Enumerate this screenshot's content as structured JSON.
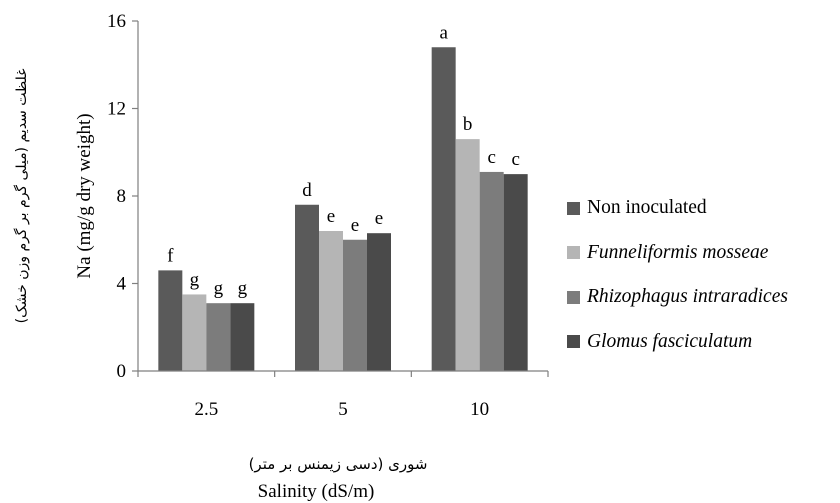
{
  "chart_data": {
    "type": "bar",
    "categories": [
      "2.5",
      "5",
      "10"
    ],
    "series": [
      {
        "name": "Non inoculated",
        "color": "#5a5a5a",
        "italic": false,
        "values": [
          4.6,
          7.6,
          14.8
        ],
        "labels": [
          "f",
          "d",
          "a"
        ]
      },
      {
        "name": "Funneliformis mosseae",
        "color": "#b5b5b5",
        "italic": true,
        "values": [
          3.5,
          6.4,
          10.6
        ],
        "labels": [
          "g",
          "e",
          "b"
        ]
      },
      {
        "name": "Rhizophagus intraradices",
        "color": "#7c7c7c",
        "italic": true,
        "values": [
          3.1,
          6.0,
          9.1
        ],
        "labels": [
          "g",
          "e",
          "c"
        ]
      },
      {
        "name": "Glomus fasciculatum",
        "color": "#4a4a4a",
        "italic": true,
        "values": [
          3.1,
          6.3,
          9.0
        ],
        "labels": [
          "g",
          "e",
          "c"
        ]
      }
    ],
    "ylim": [
      0,
      16
    ],
    "yticks": [
      0,
      4,
      8,
      12,
      16
    ],
    "ylabel": "Na (mg/g dry weight)",
    "ylabel_fa": "غلظت سدیم (میلی گرم بر گرم وزن خشک)",
    "xlabel": "Salinity (dS/m)",
    "xlabel_fa": "شوری (دسی زیمنس بر متر)",
    "legend_position": "right",
    "grid": false
  }
}
